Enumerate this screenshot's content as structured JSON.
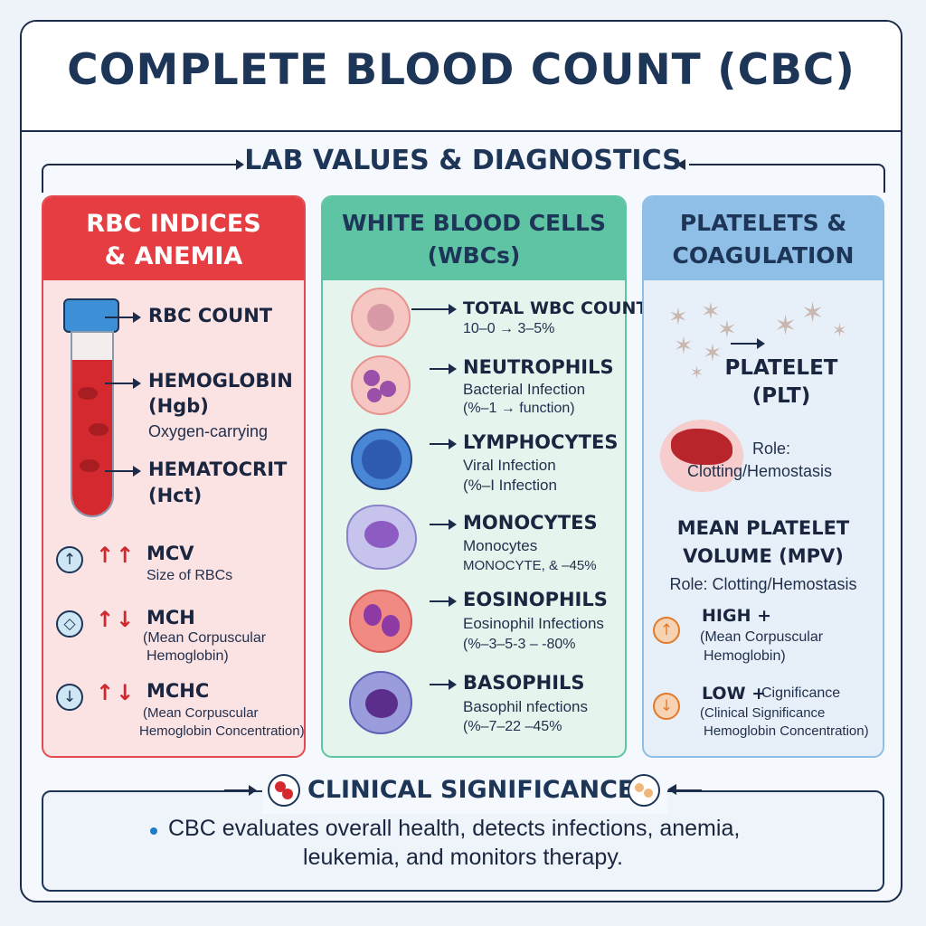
{
  "title": "COMPLETE BLOOD COUNT (CBC)",
  "subtitle": "LAB VALUES & DIAGNOSTICS",
  "colors": {
    "rbc_header": "#e53d42",
    "rbc_bg": "#fbe3e3",
    "wbc_header": "#5ec4a3",
    "wbc_bg": "#e6f4ee",
    "plt_header": "#8fbfe6",
    "plt_bg": "#e7f0f9",
    "navy": "#1d3557",
    "arrow_red": "#d0282f"
  },
  "rbc": {
    "header_l1": "RBC INDICES",
    "header_l2": "& ANEMIA",
    "tube_labels": {
      "count": "RBC COUNT",
      "hgb_l1": "HEMOGLOBIN",
      "hgb_l2": "(Hgb)",
      "hgb_note": "Oxygen-carrying",
      "hct_l1": "HEMATOCRIT",
      "hct_l2": "(Hct)"
    },
    "indices": [
      {
        "name": "MCV",
        "desc1": "Size of RBCs",
        "desc2": "",
        "icon": "up-circle-icon"
      },
      {
        "name": "MCH",
        "desc1": "(Mean Corpuscular",
        "desc2": "Hemoglobin)",
        "icon": "diamond-circle-icon"
      },
      {
        "name": "MCHC",
        "desc1": "(Mean Corpuscular",
        "desc2": "Hemoglobin Concentration)",
        "icon": "down-circle-icon"
      }
    ]
  },
  "wbc": {
    "header_l1": "WHITE BLOOD CELLS",
    "header_l2": "(WBCs)",
    "items": [
      {
        "name": "TOTAL WBC COUNT",
        "l1": "10–0 → 3–5%",
        "l2": ""
      },
      {
        "name": "NEUTROPHILS",
        "l1": "Bacterial Infection",
        "l2": "(%–1 → function)"
      },
      {
        "name": "LYMPHOCYTES",
        "l1": "Viral Infection",
        "l2": "(%–I Infection"
      },
      {
        "name": "MONOCYTES",
        "l1": "Monocytes",
        "l2": "MONOCYTE, & –45%"
      },
      {
        "name": "EOSINOPHILS",
        "l1": "Eosinophil Infections",
        "l2": "(%–3–5-3 – -80%"
      },
      {
        "name": "BASOPHILS",
        "l1": "Basophil nfections",
        "l2": "(%–7–22 –45%"
      }
    ]
  },
  "plt": {
    "header_l1": "PLATELETS &",
    "header_l2": "COAGULATION",
    "platelet_l1": "PLATELET",
    "platelet_l2": "(PLT)",
    "role_l1": "Role:",
    "role_l2": "Clotting/Hemostasis",
    "mpv_l1": "MEAN PLATELET",
    "mpv_l2": "VOLUME (MPV)",
    "mpv_role": "Role: Clotting/Hemostasis",
    "high_label": "HIGH +",
    "high_l1": "(Mean Corpuscular",
    "high_l2": "Hemoglobin)",
    "low_label": "LOW +",
    "low_extra": "Cignificance",
    "low_l1": "(Clinical Significance",
    "low_l2": "Hemoglobin Concentration)"
  },
  "clinical": {
    "title": "CLINICAL SIGNIFICANCE",
    "line1": "CBC evaluates overall health, detects infections, anemia,",
    "line2": "leukemia, and monitors therapy."
  }
}
